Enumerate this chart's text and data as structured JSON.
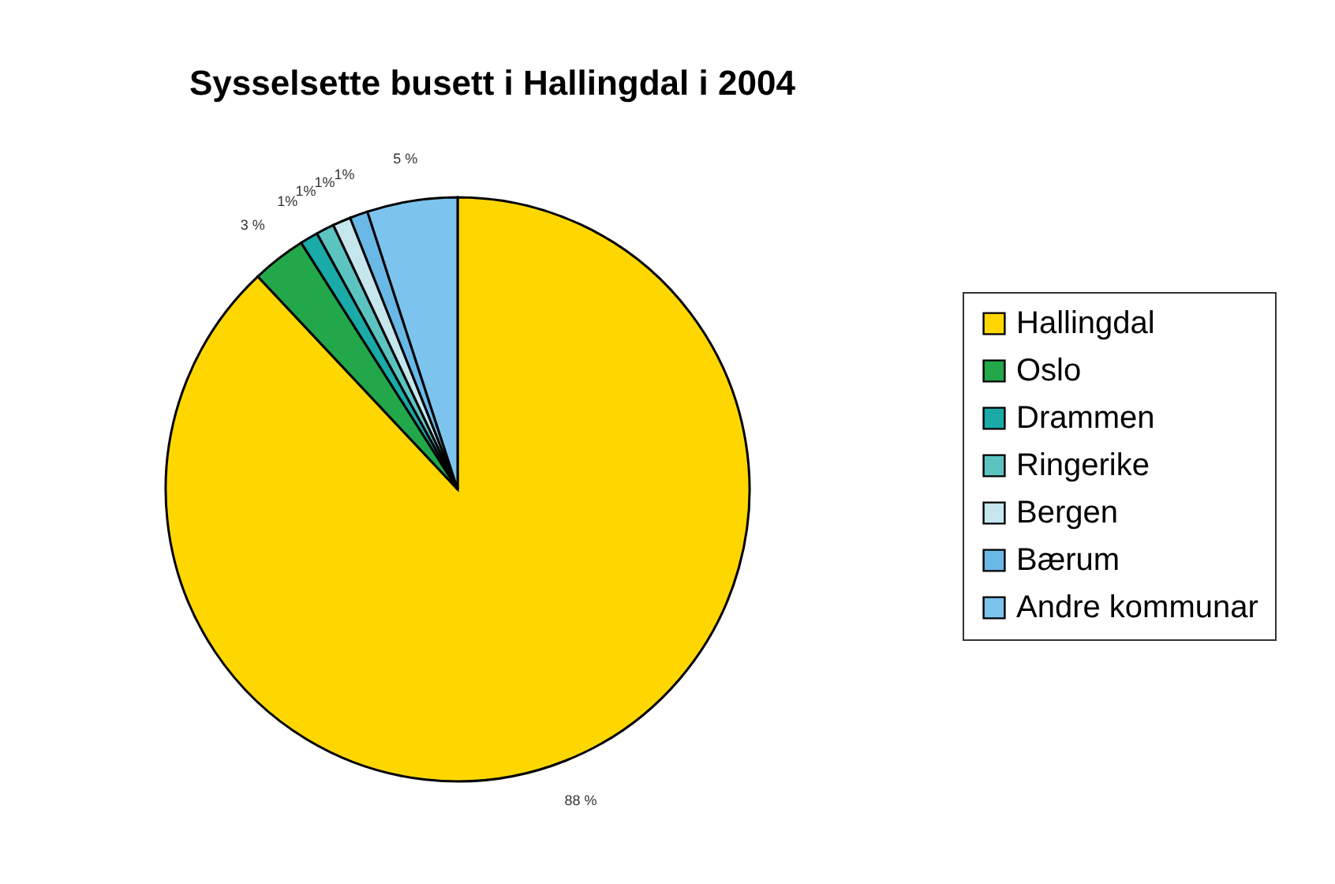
{
  "chart_data": {
    "type": "pie",
    "title": "Sysselsette busett i Hallingdal i 2004",
    "categories": [
      "Hallingdal",
      "Oslo",
      "Drammen",
      "Ringerike",
      "Bergen",
      "Bærum",
      "Andre kommunar"
    ],
    "values": [
      88,
      3,
      1,
      1,
      1,
      1,
      5
    ],
    "colors": [
      "#ffd700",
      "#22a84a",
      "#1aaaa8",
      "#5cc4c0",
      "#c6e6ee",
      "#6ab8e6",
      "#7cc4ee"
    ],
    "value_labels": [
      "88 %",
      "3 %",
      "1%",
      "1%",
      "1%",
      "1%",
      "5 %"
    ],
    "legend": "right"
  }
}
